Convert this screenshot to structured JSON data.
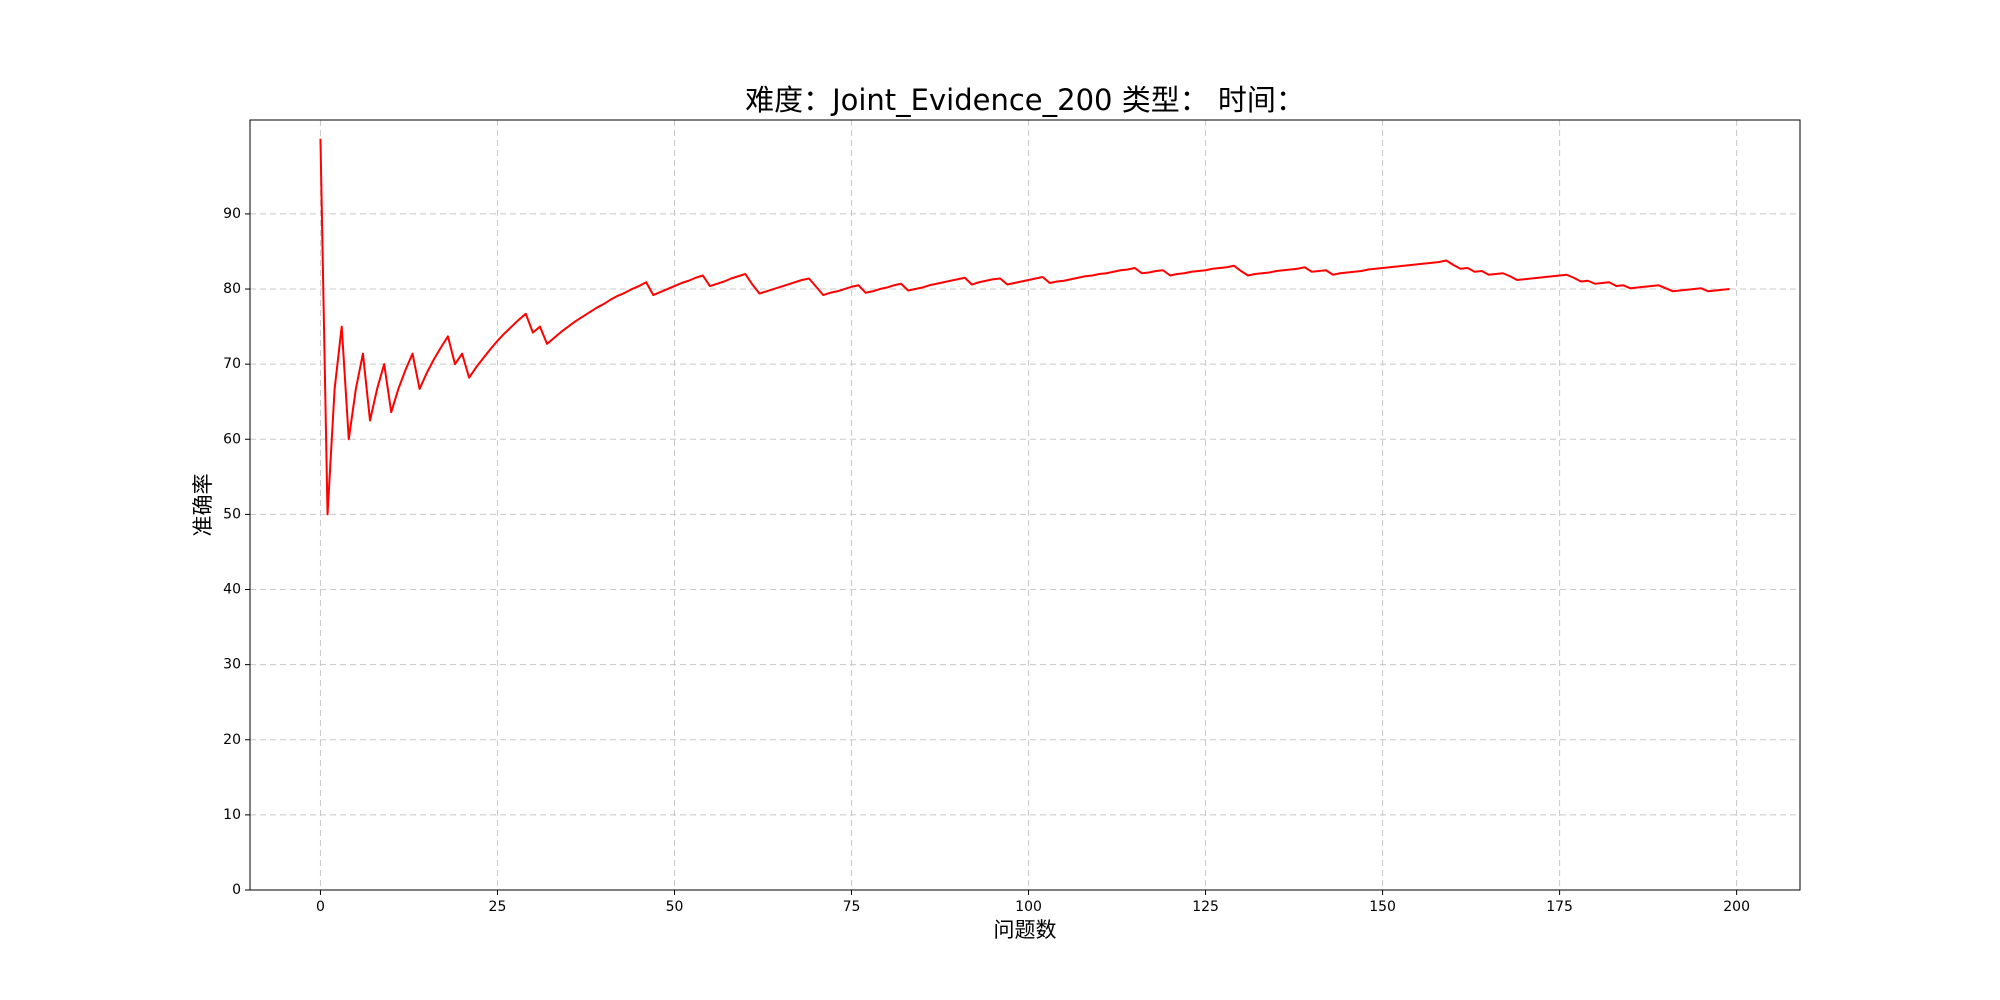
{
  "chart_data": {
    "type": "line",
    "title": "难度：Joint_Evidence_200 类型：  时间：",
    "x_label": "问题数",
    "y_label": "准确率",
    "x": [
      0,
      1,
      2,
      3,
      4,
      5,
      6,
      7,
      8,
      9,
      10,
      11,
      12,
      13,
      14,
      15,
      16,
      17,
      18,
      19,
      20,
      21,
      22,
      23,
      24,
      25,
      26,
      27,
      28,
      29,
      30,
      31,
      32,
      33,
      34,
      35,
      36,
      37,
      38,
      39,
      40,
      41,
      42,
      43,
      44,
      45,
      46,
      47,
      48,
      49,
      50,
      51,
      52,
      53,
      54,
      55,
      56,
      57,
      58,
      59,
      60,
      61,
      62,
      63,
      64,
      65,
      66,
      67,
      68,
      69,
      70,
      71,
      72,
      73,
      74,
      75,
      76,
      77,
      78,
      79,
      80,
      81,
      82,
      83,
      84,
      85,
      86,
      87,
      88,
      89,
      90,
      91,
      92,
      93,
      94,
      95,
      96,
      97,
      98,
      99,
      100,
      101,
      102,
      103,
      104,
      105,
      106,
      107,
      108,
      109,
      110,
      111,
      112,
      113,
      114,
      115,
      116,
      117,
      118,
      119,
      120,
      121,
      122,
      123,
      124,
      125,
      126,
      127,
      128,
      129,
      130,
      131,
      132,
      133,
      134,
      135,
      136,
      137,
      138,
      139,
      140,
      141,
      142,
      143,
      144,
      145,
      146,
      147,
      148,
      149,
      150,
      151,
      152,
      153,
      154,
      155,
      156,
      157,
      158,
      159,
      160,
      161,
      162,
      163,
      164,
      165,
      166,
      167,
      168,
      169,
      170,
      171,
      172,
      173,
      174,
      175,
      176,
      177,
      178,
      179,
      180,
      181,
      182,
      183,
      184,
      185,
      186,
      187,
      188,
      189,
      190,
      191,
      192,
      193,
      194,
      195,
      196,
      197,
      198,
      199
    ],
    "values": [
      100,
      50,
      66.7,
      75,
      60,
      66.7,
      71.4,
      62.5,
      66.7,
      70,
      63.6,
      66.7,
      69.2,
      71.4,
      66.7,
      68.8,
      70.6,
      72.2,
      73.7,
      70,
      71.4,
      68.2,
      69.6,
      70.8,
      72,
      73.1,
      74.1,
      75,
      75.9,
      76.7,
      74.2,
      75,
      72.7,
      73.5,
      74.3,
      75,
      75.7,
      76.3,
      76.9,
      77.5,
      78,
      78.6,
      79.1,
      79.5,
      80,
      80.4,
      80.9,
      79.2,
      79.6,
      80,
      80.4,
      80.8,
      81.1,
      81.5,
      81.8,
      80.4,
      80.7,
      81,
      81.4,
      81.7,
      82,
      80.6,
      79.4,
      79.7,
      80,
      80.3,
      80.6,
      80.9,
      81.2,
      81.4,
      80.3,
      79.2,
      79.5,
      79.7,
      80,
      80.3,
      80.5,
      79.5,
      79.7,
      80,
      80.2,
      80.5,
      80.7,
      79.8,
      80,
      80.2,
      80.5,
      80.7,
      80.9,
      81.1,
      81.3,
      81.5,
      80.6,
      80.9,
      81.1,
      81.3,
      81.4,
      80.6,
      80.8,
      81,
      81.2,
      81.4,
      81.6,
      80.8,
      81,
      81.1,
      81.3,
      81.5,
      81.7,
      81.8,
      82,
      82.1,
      82.3,
      82.5,
      82.6,
      82.8,
      82.1,
      82.2,
      82.4,
      82.5,
      81.8,
      82,
      82.1,
      82.3,
      82.4,
      82.5,
      82.7,
      82.8,
      82.9,
      83.1,
      82.4,
      81.8,
      82,
      82.1,
      82.2,
      82.4,
      82.5,
      82.6,
      82.7,
      82.9,
      82.3,
      82.4,
      82.5,
      81.9,
      82.1,
      82.2,
      82.3,
      82.4,
      82.6,
      82.7,
      82.8,
      82.9,
      83,
      83.1,
      83.2,
      83.3,
      83.4,
      83.5,
      83.6,
      83.8,
      83.2,
      82.7,
      82.8,
      82.3,
      82.4,
      81.9,
      82,
      82.1,
      81.7,
      81.2,
      81.3,
      81.4,
      81.5,
      81.6,
      81.7,
      81.8,
      81.9,
      81.5,
      81,
      81.1,
      80.7,
      80.8,
      80.9,
      80.4,
      80.5,
      80.1,
      80.2,
      80.3,
      80.4,
      80.5,
      80.1,
      79.7,
      79.8,
      79.9,
      80,
      80.1,
      79.7,
      79.8,
      79.9,
      80
    ],
    "color": "#ff0000",
    "xlim": [
      -9.95,
      208.95
    ],
    "xticks": [
      0,
      25,
      50,
      75,
      100,
      125,
      150,
      175,
      200
    ],
    "ylim": [
      0,
      102.5
    ],
    "yticks": [
      0,
      10,
      20,
      30,
      40,
      50,
      60,
      70,
      80,
      90
    ],
    "grid": true
  }
}
